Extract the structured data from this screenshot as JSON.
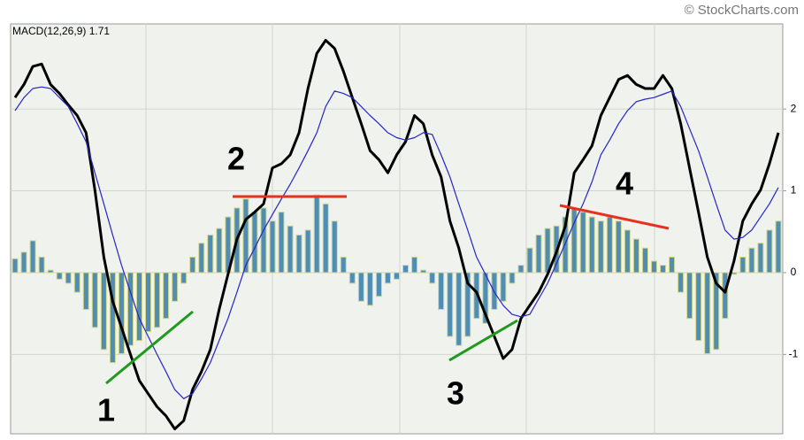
{
  "chart_data": {
    "type": "macd",
    "title": "MACD(12,26,9)  1.71",
    "source": "© StockCharts.com",
    "annotations": [
      "1",
      "2",
      "3",
      "4"
    ],
    "ylim": [
      -1.97,
      3.04
    ],
    "yticks": [
      -1,
      0,
      1,
      2
    ],
    "grid": true,
    "series": [
      {
        "name": "Histogram",
        "kind": "histogram",
        "color": "#4f8db5",
        "values": [
          0.17,
          0.25,
          0.39,
          0.19,
          0.03,
          -0.08,
          -0.13,
          -0.24,
          -0.45,
          -0.67,
          -0.94,
          -1.1,
          -0.99,
          -0.89,
          -0.83,
          -0.72,
          -0.67,
          -0.56,
          -0.35,
          -0.13,
          0.19,
          0.36,
          0.46,
          0.54,
          0.68,
          0.79,
          0.9,
          0.74,
          0.79,
          0.63,
          0.74,
          0.57,
          0.46,
          0.52,
          0.95,
          0.84,
          0.63,
          0.19,
          -0.13,
          -0.35,
          -0.4,
          -0.29,
          -0.13,
          -0.08,
          0.09,
          0.19,
          0.03,
          -0.13,
          -0.45,
          -0.78,
          -0.89,
          -0.78,
          -0.56,
          -0.62,
          -0.45,
          -0.35,
          -0.13,
          0.09,
          0.3,
          0.46,
          0.54,
          0.57,
          0.68,
          0.79,
          0.74,
          0.68,
          0.63,
          0.68,
          0.63,
          0.52,
          0.41,
          0.3,
          0.14,
          0.09,
          0.19,
          -0.24,
          -0.56,
          -0.83,
          -0.99,
          -0.94,
          -0.56,
          -0.02,
          0.19,
          0.3,
          0.36,
          0.52,
          0.63
        ]
      },
      {
        "name": "MACD",
        "kind": "line",
        "color": "#000000",
        "width": 3,
        "values": [
          2.14,
          2.3,
          2.52,
          2.55,
          2.3,
          2.19,
          2.05,
          1.92,
          1.71,
          1.01,
          0.19,
          -0.35,
          -0.67,
          -1.0,
          -1.32,
          -1.48,
          -1.64,
          -1.75,
          -1.91,
          -1.81,
          -1.43,
          -1.21,
          -0.94,
          -0.45,
          -0.02,
          0.41,
          0.65,
          0.74,
          0.84,
          1.28,
          1.33,
          1.44,
          1.71,
          2.25,
          2.68,
          2.84,
          2.74,
          2.46,
          2.14,
          1.82,
          1.49,
          1.38,
          1.22,
          1.44,
          1.6,
          1.92,
          1.82,
          1.44,
          1.17,
          0.63,
          0.3,
          -0.13,
          -0.24,
          -0.51,
          -0.78,
          -1.05,
          -0.94,
          -0.56,
          -0.4,
          -0.24,
          -0.02,
          0.25,
          0.57,
          1.22,
          1.38,
          1.55,
          1.92,
          2.14,
          2.36,
          2.41,
          2.3,
          2.25,
          2.25,
          2.41,
          2.25,
          1.82,
          1.28,
          0.74,
          0.19,
          -0.13,
          -0.24,
          0.14,
          0.63,
          0.84,
          1.01,
          1.33,
          1.71
        ]
      },
      {
        "name": "Signal",
        "kind": "line",
        "color": "#2626c8",
        "width": 1.2,
        "values": [
          1.98,
          2.14,
          2.25,
          2.27,
          2.25,
          2.14,
          2.03,
          1.82,
          1.6,
          1.22,
          0.84,
          0.46,
          0.09,
          -0.24,
          -0.56,
          -0.78,
          -1.0,
          -1.21,
          -1.43,
          -1.54,
          -1.48,
          -1.3,
          -1.1,
          -0.83,
          -0.56,
          -0.24,
          0.09,
          0.3,
          0.52,
          0.71,
          0.9,
          1.08,
          1.28,
          1.49,
          1.71,
          2.03,
          2.22,
          2.19,
          2.14,
          2.03,
          1.92,
          1.82,
          1.71,
          1.65,
          1.62,
          1.65,
          1.71,
          1.69,
          1.44,
          1.17,
          0.84,
          0.52,
          0.19,
          -0.02,
          -0.24,
          -0.4,
          -0.51,
          -0.54,
          -0.51,
          -0.32,
          -0.13,
          0.11,
          0.36,
          0.61,
          0.84,
          1.11,
          1.44,
          1.62,
          1.82,
          1.98,
          2.09,
          2.12,
          2.14,
          2.18,
          2.22,
          2.03,
          1.76,
          1.49,
          1.17,
          0.84,
          0.52,
          0.41,
          0.43,
          0.52,
          0.68,
          0.84,
          1.04
        ]
      }
    ]
  }
}
